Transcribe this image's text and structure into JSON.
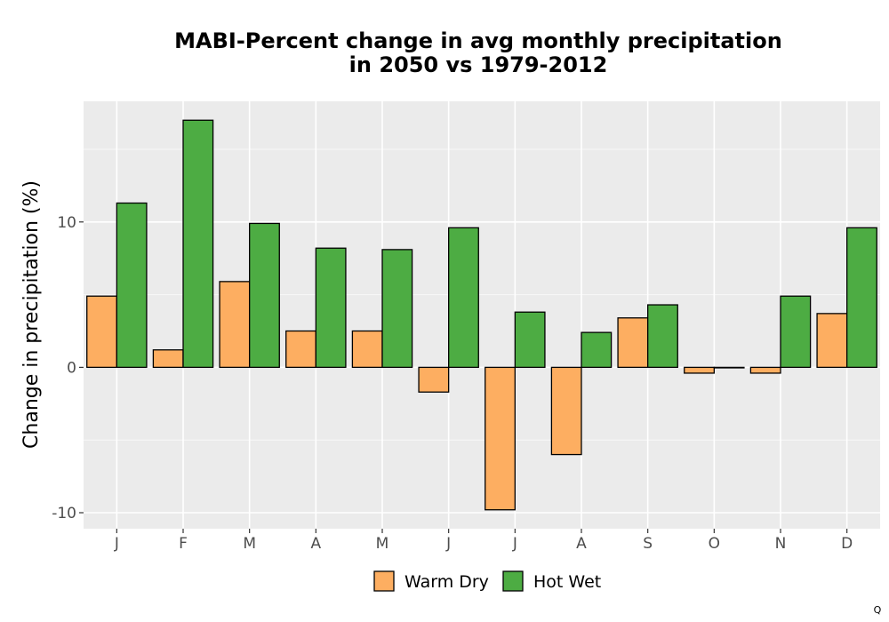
{
  "chart_data": {
    "type": "bar",
    "title_line1": "MABI-Percent change in avg monthly precipitation",
    "title_line2": "in 2050 vs 1979-2012",
    "xlabel": "",
    "ylabel": "Change in precipitation (%)",
    "categories": [
      "J",
      "F",
      "M",
      "A",
      "M",
      "J",
      "J",
      "A",
      "S",
      "O",
      "N",
      "D"
    ],
    "series": [
      {
        "name": "Warm Dry",
        "color": "#FDAE61",
        "values": [
          4.9,
          1.2,
          5.9,
          2.5,
          2.5,
          -1.7,
          -9.8,
          -6.0,
          3.4,
          -0.4,
          -0.4,
          3.7
        ]
      },
      {
        "name": "Hot Wet",
        "color": "#4DAC43",
        "values": [
          11.3,
          17.0,
          9.9,
          8.2,
          8.1,
          9.6,
          3.8,
          2.4,
          4.3,
          0.0,
          4.9,
          9.6
        ]
      }
    ],
    "yticks": [
      -10,
      0,
      10
    ],
    "ytick_labels": [
      "-10",
      "0",
      "10"
    ],
    "ylim": [
      -11.1,
      18.3
    ],
    "grid": true,
    "legend_position": "bottom"
  },
  "corner_mark": "Q"
}
